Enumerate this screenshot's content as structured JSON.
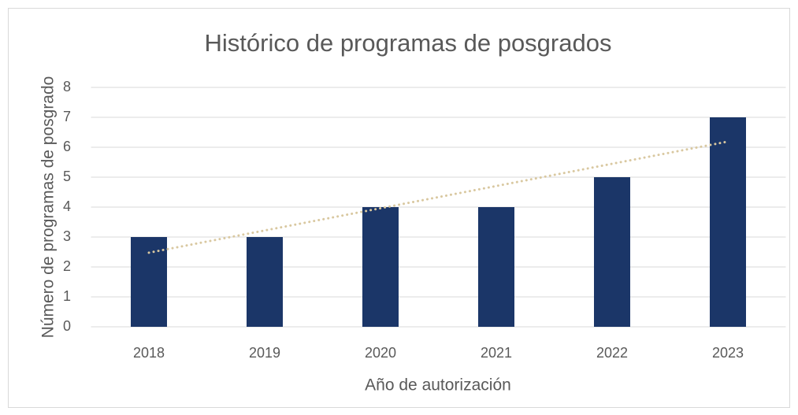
{
  "chart_data": {
    "type": "bar",
    "title": "Histórico de programas de posgrados",
    "x_label": "Año de autorización",
    "y_label": "Número de programas de posgrado",
    "categories": [
      "2018",
      "2019",
      "2020",
      "2021",
      "2022",
      "2023"
    ],
    "values": [
      3,
      3,
      4,
      4,
      5,
      7
    ],
    "color": "#1b3668",
    "ylim": [
      0,
      8
    ],
    "yticks": [
      0,
      1,
      2,
      3,
      4,
      5,
      6,
      7,
      8
    ],
    "grid": true,
    "trendline": {
      "type": "linear",
      "color": "#d9c8a0"
    }
  }
}
